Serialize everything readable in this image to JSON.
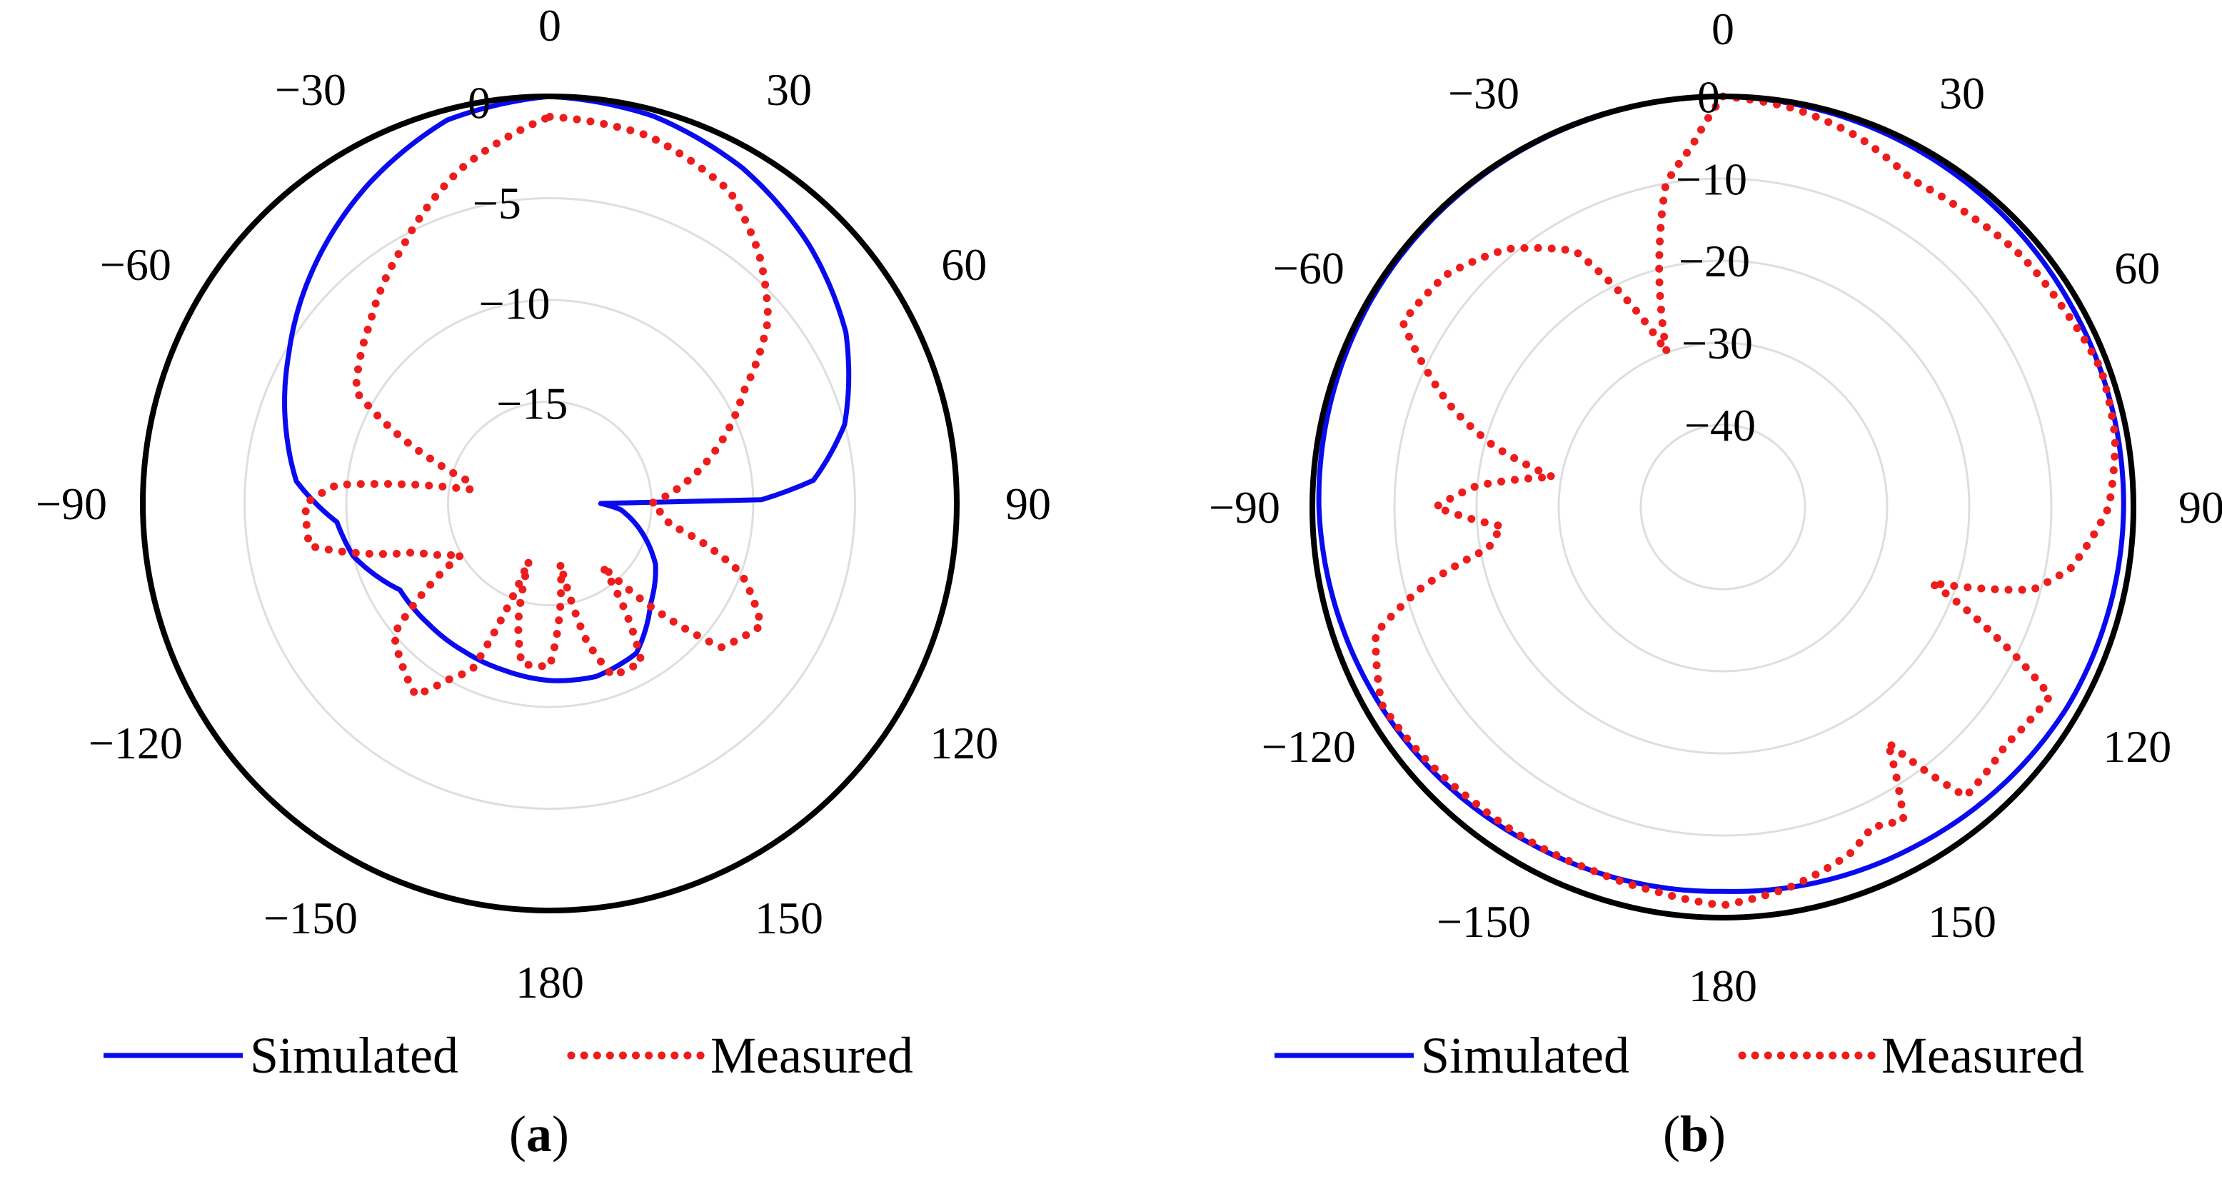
{
  "figure": {
    "colors": {
      "simulated": "#0a0aef",
      "measured": "#ee1c1c",
      "outer_circle": "#000000",
      "grid": "#dedede"
    },
    "legend": {
      "simulated": "Simulated",
      "measured": "Measured"
    }
  },
  "chart_data": [
    {
      "type": "polar",
      "caption": {
        "open": "(",
        "letter": "a",
        "close": ")"
      },
      "theta_zero": "top",
      "theta_direction": "clockwise",
      "r_range": [
        -20,
        0
      ],
      "r_ticks": [
        0,
        -5,
        -10,
        -15
      ],
      "angle_ticks": [
        "0",
        "30",
        "60",
        "90",
        "120",
        "150",
        "180",
        "−150",
        "−120",
        "−90",
        "−60",
        "−30"
      ],
      "series": [
        {
          "name": "Simulated",
          "style": "solid",
          "angle_deg": [
            0,
            15,
            30,
            45,
            60,
            75,
            85,
            89,
            90,
            95,
            105,
            120,
            135,
            150,
            165,
            180,
            195,
            210,
            225,
            240,
            255,
            265,
            275,
            285,
            300,
            315,
            330,
            345,
            360
          ],
          "r_db": [
            0,
            -0.3,
            -1,
            -2,
            -3.2,
            -5,
            -7,
            -9.6,
            -17.5,
            -16.5,
            -15.5,
            -14,
            -13,
            -11.5,
            -11.2,
            -11.3,
            -11.5,
            -11.6,
            -11.6,
            -11.5,
            -10,
            -9.5,
            -7.5,
            -6.6,
            -5.2,
            -3.6,
            -2,
            -0.5,
            0
          ]
        },
        {
          "name": "Measured",
          "style": "dotted",
          "angle_deg": [
            0,
            15,
            30,
            40,
            50,
            60,
            75,
            90,
            100,
            110,
            120,
            130,
            140,
            150,
            160,
            165,
            170,
            180,
            190,
            195,
            200,
            205,
            210,
            215,
            230,
            240,
            250,
            260,
            270,
            275,
            280,
            285,
            290,
            300,
            315,
            330,
            345,
            360
          ],
          "r_db": [
            -1,
            -1.3,
            -2.3,
            -4,
            -6,
            -9,
            -12,
            -15,
            -14,
            -10,
            -8,
            -9,
            -16,
            -11,
            -11,
            -13,
            -17,
            -12,
            -12,
            -14,
            -17,
            -11,
            -10,
            -8.5,
            -10,
            -15,
            -13,
            -8,
            -8,
            -9.5,
            -16,
            -16,
            -14,
            -9,
            -7.5,
            -5.5,
            -3,
            -1
          ]
        }
      ]
    },
    {
      "type": "polar",
      "caption": {
        "open": "(",
        "letter": "b",
        "close": ")"
      },
      "theta_zero": "top",
      "theta_direction": "clockwise",
      "r_range": [
        -50,
        0
      ],
      "r_ticks": [
        0,
        -10,
        -20,
        -30,
        -40
      ],
      "angle_ticks": [
        "0",
        "30",
        "60",
        "90",
        "120",
        "150",
        "180",
        "−150",
        "−120",
        "−90",
        "−60",
        "−30"
      ],
      "series": [
        {
          "name": "Simulated",
          "style": "solid",
          "angle_deg": [
            0,
            30,
            60,
            90,
            120,
            150,
            180,
            210,
            240,
            270,
            300,
            330,
            360
          ],
          "r_db": [
            0,
            -0.5,
            -1,
            -1.2,
            -1.5,
            -2.5,
            -3.2,
            -2.8,
            -1.8,
            -0.8,
            -0.3,
            -0.1,
            0
          ]
        },
        {
          "name": "Measured",
          "style": "dotted",
          "angle_deg": [
            0,
            10,
            20,
            30,
            40,
            50,
            60,
            70,
            80,
            90,
            100,
            105,
            110,
            115,
            120,
            130,
            140,
            145,
            150,
            155,
            160,
            170,
            180,
            190,
            200,
            210,
            220,
            230,
            240,
            250,
            255,
            260,
            265,
            270,
            275,
            280,
            285,
            290,
            300,
            310,
            320,
            330,
            340,
            345,
            350,
            355,
            360
          ],
          "r_db": [
            0,
            -0.7,
            -2,
            -4,
            -3.5,
            -2.5,
            -2,
            -1,
            -1.5,
            -3,
            -7,
            -11,
            -23,
            -14,
            -4,
            -5,
            -4,
            -15,
            -6,
            -7,
            -5,
            -3,
            -1.5,
            -2.5,
            -3,
            -3,
            -3,
            -2.5,
            -2,
            -5,
            -12,
            -21,
            -23,
            -15,
            -20,
            -29,
            -21,
            -15,
            -5,
            -6,
            -9,
            -14,
            -30,
            -20,
            -10,
            -6,
            0
          ]
        }
      ]
    }
  ]
}
